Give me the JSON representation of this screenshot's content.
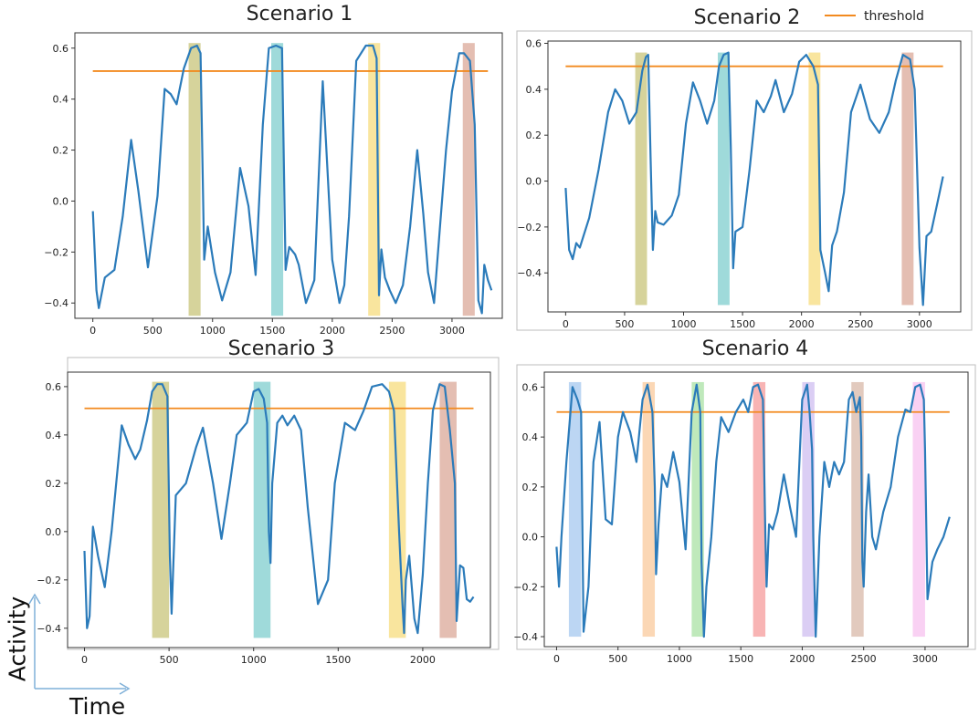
{
  "figure": {
    "axis_note_y": "Activity",
    "axis_note_x": "Time"
  },
  "colors": {
    "line": "#2b7bba",
    "threshold": "#f28a1f",
    "bands": [
      "#c8c47a",
      "#7fcdcd",
      "#f7dc7e",
      "#dba898",
      "#a6c8ef",
      "#f9c99c",
      "#a9e2a4",
      "#f59b9b",
      "#cfbdf0",
      "#d8b8a8",
      "#f7c1ef"
    ]
  },
  "chart_data": [
    {
      "id": "s1",
      "type": "line",
      "title": "Scenario 1",
      "legend": [],
      "xlim": [
        -150,
        3420
      ],
      "ylim": [
        -0.46,
        0.66
      ],
      "xticks": [
        0,
        500,
        1000,
        1500,
        2000,
        2500,
        3000
      ],
      "xtick_labels": [
        "0",
        "500",
        "1000",
        "1500",
        "2000",
        "2500",
        "3000"
      ],
      "yticks": [
        -0.4,
        -0.2,
        0.0,
        0.2,
        0.4,
        0.6
      ],
      "ytick_labels": [
        "−0.4",
        "−0.2",
        "0.0",
        "0.2",
        "0.4",
        "0.6"
      ],
      "threshold": {
        "label": "threshold",
        "value": 0.51,
        "x_range": [
          0,
          3300
        ]
      },
      "bands": [
        {
          "x": [
            800,
            900
          ],
          "y": [
            -0.45,
            0.62
          ],
          "color": 0
        },
        {
          "x": [
            1490,
            1590
          ],
          "y": [
            -0.45,
            0.62
          ],
          "color": 1
        },
        {
          "x": [
            2300,
            2400
          ],
          "y": [
            -0.45,
            0.62
          ],
          "color": 2
        },
        {
          "x": [
            3090,
            3190
          ],
          "y": [
            -0.45,
            0.62
          ],
          "color": 3
        }
      ],
      "series": [
        {
          "name": "activity",
          "x": [
            0,
            30,
            50,
            100,
            180,
            250,
            320,
            380,
            460,
            540,
            600,
            650,
            700,
            760,
            820,
            870,
            900,
            930,
            960,
            1020,
            1080,
            1150,
            1230,
            1300,
            1360,
            1420,
            1470,
            1530,
            1580,
            1610,
            1640,
            1690,
            1720,
            1780,
            1850,
            1920,
            2000,
            2060,
            2100,
            2140,
            2170,
            2200,
            2280,
            2340,
            2370,
            2390,
            2410,
            2440,
            2480,
            2530,
            2590,
            2650,
            2710,
            2760,
            2800,
            2850,
            2900,
            2950,
            3000,
            3060,
            3100,
            3150,
            3190,
            3220,
            3250,
            3270,
            3300,
            3330
          ],
          "y": [
            -0.04,
            -0.35,
            -0.42,
            -0.3,
            -0.27,
            -0.06,
            0.24,
            0.04,
            -0.26,
            0.02,
            0.44,
            0.42,
            0.38,
            0.52,
            0.6,
            0.61,
            0.58,
            -0.23,
            -0.1,
            -0.28,
            -0.39,
            -0.28,
            0.13,
            -0.02,
            -0.29,
            0.3,
            0.6,
            0.61,
            0.6,
            -0.27,
            -0.18,
            -0.21,
            -0.25,
            -0.4,
            -0.31,
            0.47,
            -0.23,
            -0.4,
            -0.33,
            -0.06,
            0.24,
            0.55,
            0.61,
            0.61,
            0.56,
            -0.37,
            -0.19,
            -0.3,
            -0.35,
            -0.4,
            -0.33,
            -0.1,
            0.2,
            -0.05,
            -0.28,
            -0.4,
            -0.1,
            0.2,
            0.43,
            0.58,
            0.58,
            0.55,
            0.3,
            -0.39,
            -0.44,
            -0.25,
            -0.31,
            -0.35
          ]
        }
      ]
    },
    {
      "id": "s2",
      "type": "line",
      "title": "Scenario 2",
      "legend": [
        "threshold"
      ],
      "xlim": [
        -150,
        3350
      ],
      "ylim": [
        -0.57,
        0.61
      ],
      "xticks": [
        0,
        500,
        1000,
        1500,
        2000,
        2500,
        3000
      ],
      "xtick_labels": [
        "0",
        "500",
        "1000",
        "1500",
        "2000",
        "2500",
        "3000"
      ],
      "yticks": [
        -0.4,
        -0.2,
        0.0,
        0.2,
        0.4,
        0.6
      ],
      "ytick_labels": [
        "−0.4",
        "−0.2",
        "0.0",
        "0.2",
        "0.4",
        "0.6"
      ],
      "threshold": {
        "label": "threshold",
        "value": 0.5,
        "x_range": [
          0,
          3200
        ]
      },
      "bands": [
        {
          "x": [
            590,
            690
          ],
          "y": [
            -0.54,
            0.56
          ],
          "color": 0
        },
        {
          "x": [
            1290,
            1390
          ],
          "y": [
            -0.54,
            0.56
          ],
          "color": 1
        },
        {
          "x": [
            2060,
            2160
          ],
          "y": [
            -0.54,
            0.56
          ],
          "color": 2
        },
        {
          "x": [
            2850,
            2950
          ],
          "y": [
            -0.54,
            0.56
          ],
          "color": 3
        }
      ],
      "series": [
        {
          "name": "activity",
          "x": [
            0,
            30,
            60,
            90,
            120,
            200,
            280,
            360,
            420,
            480,
            540,
            600,
            650,
            680,
            700,
            720,
            740,
            760,
            780,
            830,
            900,
            960,
            1020,
            1080,
            1140,
            1200,
            1260,
            1300,
            1340,
            1380,
            1400,
            1420,
            1440,
            1500,
            1560,
            1620,
            1680,
            1740,
            1780,
            1850,
            1920,
            1980,
            2040,
            2100,
            2140,
            2160,
            2200,
            2230,
            2260,
            2300,
            2360,
            2420,
            2500,
            2580,
            2660,
            2740,
            2800,
            2860,
            2920,
            2960,
            3000,
            3030,
            3060,
            3100,
            3150,
            3200
          ],
          "y": [
            -0.03,
            -0.3,
            -0.34,
            -0.27,
            -0.29,
            -0.16,
            0.05,
            0.3,
            0.4,
            0.35,
            0.25,
            0.3,
            0.48,
            0.54,
            0.55,
            0.1,
            -0.3,
            -0.13,
            -0.18,
            -0.19,
            -0.15,
            -0.06,
            0.25,
            0.43,
            0.35,
            0.25,
            0.35,
            0.5,
            0.55,
            0.56,
            0.15,
            -0.38,
            -0.22,
            -0.2,
            0.05,
            0.35,
            0.3,
            0.37,
            0.44,
            0.3,
            0.38,
            0.52,
            0.55,
            0.5,
            0.42,
            -0.3,
            -0.4,
            -0.48,
            -0.28,
            -0.22,
            -0.05,
            0.3,
            0.42,
            0.27,
            0.21,
            0.3,
            0.44,
            0.55,
            0.53,
            0.4,
            -0.29,
            -0.54,
            -0.24,
            -0.22,
            -0.1,
            0.02
          ]
        }
      ]
    },
    {
      "id": "s3",
      "type": "line",
      "title": "Scenario 3",
      "legend": [],
      "xlim": [
        -100,
        2400
      ],
      "ylim": [
        -0.48,
        0.66
      ],
      "xticks": [
        0,
        500,
        1000,
        1500,
        2000
      ],
      "xtick_labels": [
        "0",
        "500",
        "1000",
        "1500",
        "2000"
      ],
      "yticks": [
        -0.4,
        -0.2,
        0.0,
        0.2,
        0.4,
        0.6
      ],
      "ytick_labels": [
        "−0.4",
        "−0.2",
        "0.0",
        "0.2",
        "0.4",
        "0.6"
      ],
      "threshold": {
        "label": "threshold",
        "value": 0.51,
        "x_range": [
          0,
          2300
        ]
      },
      "bands": [
        {
          "x": [
            400,
            500
          ],
          "y": [
            -0.44,
            0.62
          ],
          "color": 0
        },
        {
          "x": [
            1000,
            1100
          ],
          "y": [
            -0.44,
            0.62
          ],
          "color": 1
        },
        {
          "x": [
            1800,
            1900
          ],
          "y": [
            -0.44,
            0.62
          ],
          "color": 2
        },
        {
          "x": [
            2100,
            2200
          ],
          "y": [
            -0.44,
            0.62
          ],
          "color": 3
        }
      ],
      "series": [
        {
          "name": "activity",
          "x": [
            0,
            15,
            30,
            50,
            80,
            120,
            160,
            220,
            260,
            300,
            330,
            370,
            400,
            430,
            460,
            490,
            505,
            515,
            540,
            600,
            660,
            700,
            760,
            810,
            860,
            900,
            960,
            1000,
            1030,
            1060,
            1080,
            1090,
            1100,
            1110,
            1140,
            1170,
            1200,
            1240,
            1280,
            1320,
            1380,
            1440,
            1480,
            1540,
            1600,
            1650,
            1700,
            1760,
            1800,
            1830,
            1860,
            1880,
            1890,
            1900,
            1920,
            1950,
            1970,
            2000,
            2030,
            2060,
            2100,
            2130,
            2160,
            2190,
            2200,
            2220,
            2240,
            2260,
            2280,
            2300
          ],
          "y": [
            -0.08,
            -0.4,
            -0.35,
            0.02,
            -0.1,
            -0.23,
            0.0,
            0.44,
            0.36,
            0.3,
            0.34,
            0.46,
            0.58,
            0.61,
            0.61,
            0.56,
            -0.1,
            -0.34,
            0.15,
            0.2,
            0.35,
            0.43,
            0.2,
            -0.03,
            0.2,
            0.4,
            0.45,
            0.58,
            0.59,
            0.55,
            0.45,
            0.0,
            -0.13,
            0.2,
            0.45,
            0.48,
            0.44,
            0.48,
            0.42,
            0.1,
            -0.3,
            -0.2,
            0.2,
            0.45,
            0.42,
            0.5,
            0.6,
            0.61,
            0.58,
            0.5,
            0.0,
            -0.3,
            -0.42,
            -0.2,
            -0.1,
            -0.36,
            -0.42,
            -0.18,
            0.2,
            0.5,
            0.61,
            0.6,
            0.42,
            0.2,
            -0.37,
            -0.14,
            -0.15,
            -0.28,
            -0.29,
            -0.27
          ]
        }
      ]
    },
    {
      "id": "s4",
      "type": "line",
      "title": "Scenario 4",
      "legend": [],
      "xlim": [
        -100,
        3350
      ],
      "ylim": [
        -0.44,
        0.66
      ],
      "xticks": [
        0,
        500,
        1000,
        1500,
        2000,
        2500,
        3000
      ],
      "xtick_labels": [
        "0",
        "500",
        "1000",
        "1500",
        "2000",
        "2500",
        "3000"
      ],
      "yticks": [
        -0.4,
        -0.2,
        0.0,
        0.2,
        0.4,
        0.6
      ],
      "ytick_labels": [
        "−0.4",
        "−0.2",
        "0.0",
        "0.2",
        "0.4",
        "0.6"
      ],
      "threshold": {
        "label": "threshold",
        "value": 0.5,
        "x_range": [
          0,
          3200
        ]
      },
      "bands": [
        {
          "x": [
            100,
            200
          ],
          "y": [
            -0.4,
            0.62
          ],
          "color": 4
        },
        {
          "x": [
            700,
            800
          ],
          "y": [
            -0.4,
            0.62
          ],
          "color": 5
        },
        {
          "x": [
            1100,
            1200
          ],
          "y": [
            -0.4,
            0.62
          ],
          "color": 6
        },
        {
          "x": [
            1600,
            1700
          ],
          "y": [
            -0.4,
            0.62
          ],
          "color": 7
        },
        {
          "x": [
            2000,
            2100
          ],
          "y": [
            -0.4,
            0.62
          ],
          "color": 8
        },
        {
          "x": [
            2400,
            2500
          ],
          "y": [
            -0.4,
            0.62
          ],
          "color": 9
        },
        {
          "x": [
            2900,
            3000
          ],
          "y": [
            -0.4,
            0.62
          ],
          "color": 10
        }
      ],
      "series": [
        {
          "name": "activity",
          "x": [
            0,
            20,
            40,
            80,
            130,
            170,
            200,
            220,
            260,
            300,
            350,
            400,
            450,
            500,
            540,
            600,
            650,
            700,
            740,
            780,
            800,
            810,
            830,
            860,
            900,
            950,
            1000,
            1050,
            1100,
            1140,
            1170,
            1180,
            1200,
            1220,
            1260,
            1300,
            1340,
            1400,
            1460,
            1520,
            1560,
            1600,
            1640,
            1680,
            1700,
            1710,
            1730,
            1760,
            1800,
            1850,
            1900,
            1950,
            2000,
            2040,
            2060,
            2080,
            2090,
            2100,
            2110,
            2140,
            2180,
            2220,
            2260,
            2300,
            2340,
            2380,
            2410,
            2440,
            2470,
            2480,
            2490,
            2500,
            2520,
            2540,
            2570,
            2600,
            2660,
            2720,
            2780,
            2840,
            2880,
            2920,
            2960,
            2990,
            3000,
            3020,
            3060,
            3100,
            3150,
            3200
          ],
          "y": [
            -0.04,
            -0.2,
            0.0,
            0.3,
            0.6,
            0.55,
            0.5,
            -0.38,
            -0.2,
            0.3,
            0.46,
            0.07,
            0.05,
            0.4,
            0.5,
            0.42,
            0.3,
            0.55,
            0.61,
            0.5,
            0.2,
            -0.15,
            0.05,
            0.25,
            0.2,
            0.34,
            0.22,
            -0.05,
            0.5,
            0.61,
            0.5,
            -0.1,
            -0.4,
            -0.2,
            0.0,
            0.3,
            0.48,
            0.42,
            0.5,
            0.55,
            0.5,
            0.6,
            0.61,
            0.55,
            0.0,
            -0.2,
            0.05,
            0.03,
            0.1,
            0.25,
            0.12,
            0.0,
            0.55,
            0.61,
            0.5,
            0.35,
            0.0,
            -0.2,
            -0.4,
            0.0,
            0.3,
            0.2,
            0.3,
            0.25,
            0.3,
            0.55,
            0.58,
            0.5,
            0.56,
            0.4,
            -0.1,
            -0.2,
            0.1,
            0.25,
            0.0,
            -0.05,
            0.1,
            0.2,
            0.4,
            0.51,
            0.5,
            0.6,
            0.61,
            0.55,
            0.35,
            -0.25,
            -0.1,
            -0.05,
            0.0,
            0.08
          ]
        }
      ]
    }
  ]
}
